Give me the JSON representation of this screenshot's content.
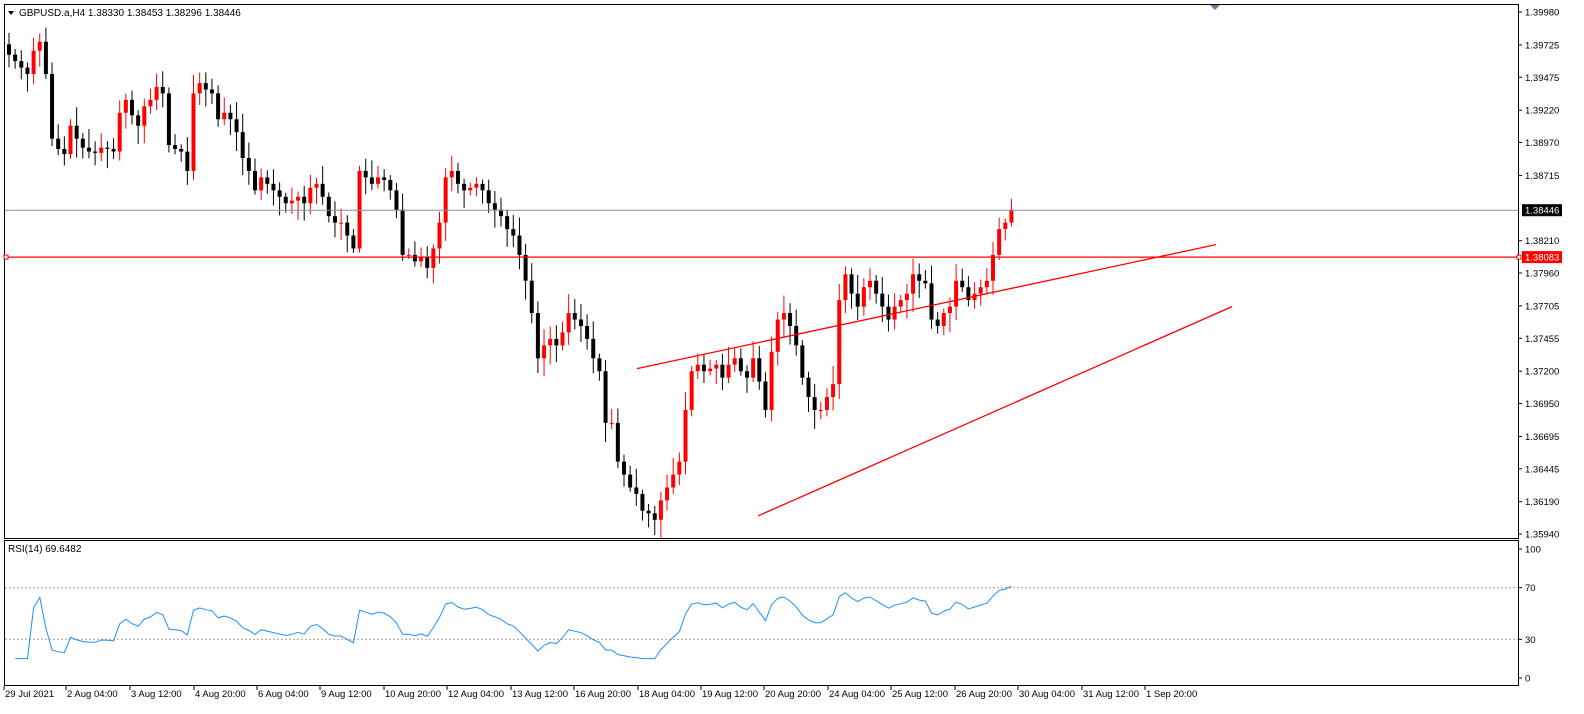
{
  "main": {
    "header": "GBPUSD.a,H4  1.38330 1.38453 1.38296 1.38446",
    "dropdown_icon": "triangle-down-icon",
    "price_labels": [
      "1.39980",
      "1.39725",
      "1.39475",
      "1.39220",
      "1.38970",
      "1.38715",
      "1.38210",
      "1.37960",
      "1.37705",
      "1.37455",
      "1.37200",
      "1.36950",
      "1.36695",
      "1.36445",
      "1.36190",
      "1.35940"
    ],
    "current_price_label": "1.38446",
    "hline_price_label": "1.38083"
  },
  "rsi": {
    "label": "RSI(14) 69.6482",
    "levels": [
      "100",
      "70",
      "30",
      "0"
    ],
    "levels_num": [
      100,
      70,
      30,
      0
    ]
  },
  "time_labels": [
    "29 Jul 2021",
    "2 Aug 04:00",
    "3 Aug 12:00",
    "4 Aug 20:00",
    "6 Aug 04:00",
    "9 Aug 12:00",
    "10 Aug 20:00",
    "12 Aug 04:00",
    "13 Aug 12:00",
    "16 Aug 20:00",
    "18 Aug 04:00",
    "19 Aug 12:00",
    "20 Aug 20:00",
    "24 Aug 04:00",
    "25 Aug 12:00",
    "26 Aug 20:00",
    "30 Aug 04:00",
    "31 Aug 12:00",
    "1 Sep 20:00"
  ],
  "colors": {
    "bull": "#ff0000",
    "bear": "#000000",
    "rsi_line": "#1e90ff",
    "hline": "#ff0000",
    "price_line": "#7f93a8",
    "grid_dots": "#a0a0a0"
  },
  "chart_data": {
    "type": "candlestick",
    "symbol": "GBPUSD.a",
    "timeframe": "H4",
    "price_range": [
      1.3594,
      1.3998
    ],
    "current_price": 1.38446,
    "horizontal_line": 1.38083,
    "trendlines": [
      {
        "from": [
          "18 Aug 04:00",
          1.3722
        ],
        "to": [
          "1 Sep 20:00",
          1.3818
        ]
      },
      {
        "from": [
          "20 Aug 04:00",
          1.3609
        ],
        "to": [
          "2 Sep 04:00",
          1.377
        ]
      }
    ],
    "close_series": [
      1.3965,
      1.396,
      1.3955,
      1.395,
      1.3968,
      1.3975,
      1.395,
      1.39,
      1.3892,
      1.3888,
      1.391,
      1.39,
      1.3893,
      1.389,
      1.3889,
      1.3893,
      1.3892,
      1.389,
      1.392,
      1.393,
      1.3918,
      1.391,
      1.3925,
      1.393,
      1.394,
      1.3935,
      1.3895,
      1.3892,
      1.389,
      1.3875,
      1.3935,
      1.3943,
      1.3938,
      1.3935,
      1.3915,
      1.392,
      1.3915,
      1.3905,
      1.3885,
      1.3875,
      1.386,
      1.387,
      1.3865,
      1.386,
      1.3855,
      1.385,
      1.3852,
      1.3855,
      1.385,
      1.3862,
      1.3865,
      1.3855,
      1.384,
      1.3835,
      1.3835,
      1.3825,
      1.3815,
      1.3875,
      1.387,
      1.3865,
      1.387,
      1.3868,
      1.386,
      1.3845,
      1.381,
      1.381,
      1.3805,
      1.3808,
      1.38,
      1.3815,
      1.3835,
      1.387,
      1.3875,
      1.3865,
      1.386,
      1.3862,
      1.3865,
      1.386,
      1.385,
      1.3845,
      1.384,
      1.383,
      1.3825,
      1.381,
      1.379,
      1.3765,
      1.373,
      1.374,
      1.3745,
      1.374,
      1.375,
      1.3765,
      1.376,
      1.3755,
      1.3745,
      1.373,
      1.372,
      1.368,
      1.368,
      1.365,
      1.364,
      1.363,
      1.3625,
      1.3612,
      1.361,
      1.3605,
      1.362,
      1.363,
      1.364,
      1.365,
      1.369,
      1.372,
      1.3725,
      1.372,
      1.3722,
      1.3725,
      1.3715,
      1.3725,
      1.373,
      1.372,
      1.3715,
      1.373,
      1.3712,
      1.369,
      1.3735,
      1.376,
      1.3765,
      1.3755,
      1.374,
      1.3715,
      1.37,
      1.369,
      1.369,
      1.37,
      1.371,
      1.3775,
      1.3795,
      1.378,
      1.377,
      1.3785,
      1.379,
      1.378,
      1.377,
      1.376,
      1.377,
      1.3775,
      1.378,
      1.3795,
      1.379,
      1.3788,
      1.376,
      1.3755,
      1.3765,
      1.377,
      1.379,
      1.3785,
      1.3775,
      1.378,
      1.3785,
      1.379,
      1.381,
      1.383,
      1.3835,
      1.3845
    ]
  }
}
